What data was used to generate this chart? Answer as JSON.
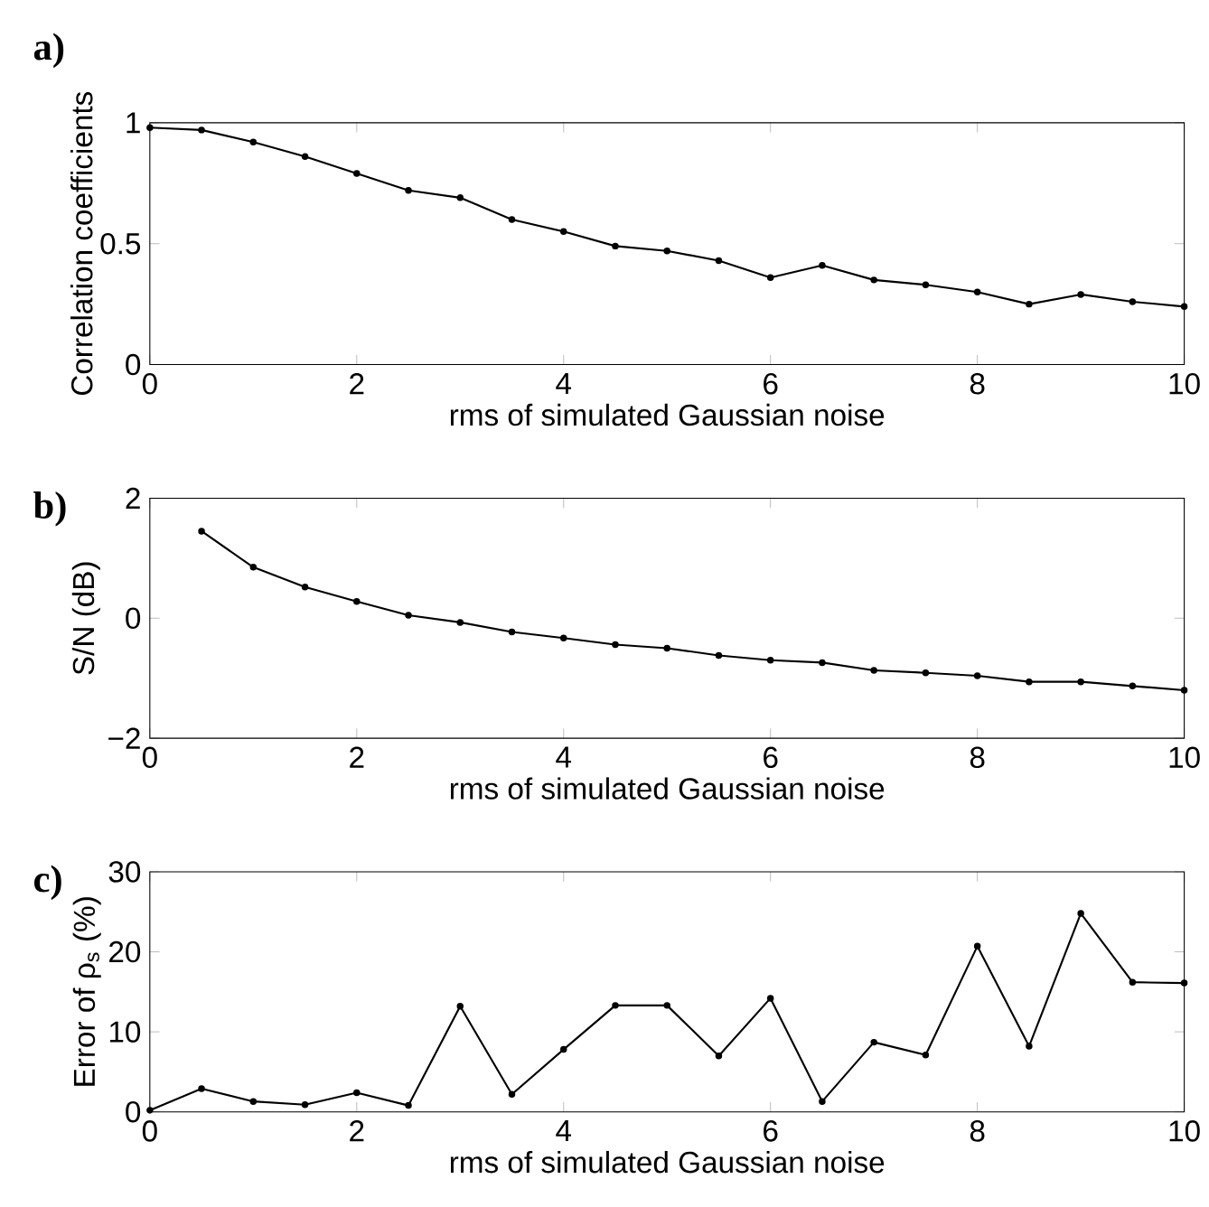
{
  "chart_data": [
    {
      "type": "line",
      "title": "a)",
      "xlabel": "rms of simulated Gaussian noise",
      "ylabel": "Correlation coefficients",
      "xlim": [
        0,
        10
      ],
      "ylim": [
        0,
        1
      ],
      "xticks": [
        0,
        2,
        4,
        6,
        8,
        10
      ],
      "yticks": [
        0,
        0.5,
        1
      ],
      "marker": "circle",
      "series": [
        {
          "color": "#000000",
          "x": [
            0,
            0.5,
            1,
            1.5,
            2,
            2.5,
            3,
            3.5,
            4,
            4.5,
            5,
            5.5,
            6,
            6.5,
            7,
            7.5,
            8,
            8.5,
            9,
            9.5,
            10
          ],
          "values": [
            0.98,
            0.97,
            0.92,
            0.86,
            0.79,
            0.72,
            0.69,
            0.6,
            0.55,
            0.49,
            0.47,
            0.43,
            0.36,
            0.41,
            0.35,
            0.33,
            0.3,
            0.25,
            0.29,
            0.26,
            0.24
          ]
        }
      ]
    },
    {
      "type": "line",
      "title": "b)",
      "xlabel": "rms of simulated Gaussian noise",
      "ylabel": "S/N (dB)",
      "xlim": [
        0,
        10
      ],
      "ylim": [
        -2,
        2
      ],
      "xticks": [
        0,
        2,
        4,
        6,
        8,
        10
      ],
      "yticks": [
        {
          "value": -2,
          "label": "−2"
        },
        0,
        2
      ],
      "marker": "circle",
      "series": [
        {
          "color": "#000000",
          "x": [
            0.5,
            1,
            1.5,
            2,
            2.5,
            3,
            3.5,
            4,
            4.5,
            5,
            5.5,
            6,
            6.5,
            7,
            7.5,
            8,
            8.5,
            9,
            9.5,
            10
          ],
          "values": [
            1.45,
            0.85,
            0.52,
            0.28,
            0.05,
            -0.07,
            -0.23,
            -0.33,
            -0.44,
            -0.5,
            -0.62,
            -0.7,
            -0.74,
            -0.87,
            -0.91,
            -0.96,
            -1.06,
            -1.06,
            -1.13,
            -1.2
          ]
        }
      ]
    },
    {
      "type": "line",
      "title": "c)",
      "xlabel": "rms of simulated Gaussian noise",
      "ylabel": "Error of ρ$_{s}$ (%)",
      "xlim": [
        0,
        10
      ],
      "ylim": [
        0,
        30
      ],
      "xticks": [
        0,
        2,
        4,
        6,
        8,
        10
      ],
      "yticks": [
        0,
        10,
        20,
        30
      ],
      "marker": "circle",
      "series": [
        {
          "color": "#000000",
          "x": [
            0,
            0.5,
            1,
            1.5,
            2,
            2.5,
            3,
            3.5,
            4,
            4.5,
            5,
            5.5,
            6,
            6.5,
            7,
            7.5,
            8,
            8.5,
            9,
            9.5,
            10
          ],
          "values": [
            0.2,
            2.9,
            1.3,
            0.9,
            2.4,
            0.8,
            13.2,
            2.2,
            7.8,
            13.3,
            13.3,
            7.0,
            14.2,
            1.3,
            8.7,
            7.1,
            20.7,
            8.2,
            24.8,
            16.2,
            16.1
          ]
        }
      ]
    }
  ]
}
